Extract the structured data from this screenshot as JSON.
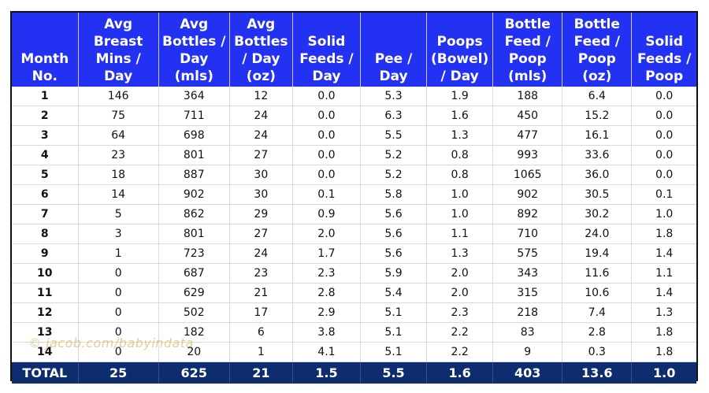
{
  "table": {
    "columns": [
      [
        "Month",
        "No."
      ],
      [
        "Avg",
        "Breast",
        "Mins /",
        "Day"
      ],
      [
        "Avg",
        "Bottles /",
        "Day (mls)"
      ],
      [
        "Avg",
        "Bottles",
        "/ Day",
        "(oz)"
      ],
      [
        "Solid",
        "Feeds /",
        "Day"
      ],
      [
        "Pee /",
        "Day"
      ],
      [
        "Poops",
        "(Bowel)",
        "/ Day"
      ],
      [
        "Bottle",
        "Feed /",
        "Poop",
        "(mls)"
      ],
      [
        "Bottle",
        "Feed /",
        "Poop",
        "(oz)"
      ],
      [
        "Solid",
        "Feeds /",
        "Poop"
      ]
    ],
    "rows": [
      [
        "1",
        "146",
        "364",
        "12",
        "0.0",
        "5.3",
        "1.9",
        "188",
        "6.4",
        "0.0"
      ],
      [
        "2",
        "75",
        "711",
        "24",
        "0.0",
        "6.3",
        "1.6",
        "450",
        "15.2",
        "0.0"
      ],
      [
        "3",
        "64",
        "698",
        "24",
        "0.0",
        "5.5",
        "1.3",
        "477",
        "16.1",
        "0.0"
      ],
      [
        "4",
        "23",
        "801",
        "27",
        "0.0",
        "5.2",
        "0.8",
        "993",
        "33.6",
        "0.0"
      ],
      [
        "5",
        "18",
        "887",
        "30",
        "0.0",
        "5.2",
        "0.8",
        "1065",
        "36.0",
        "0.0"
      ],
      [
        "6",
        "14",
        "902",
        "30",
        "0.1",
        "5.8",
        "1.0",
        "902",
        "30.5",
        "0.1"
      ],
      [
        "7",
        "5",
        "862",
        "29",
        "0.9",
        "5.6",
        "1.0",
        "892",
        "30.2",
        "1.0"
      ],
      [
        "8",
        "3",
        "801",
        "27",
        "2.0",
        "5.6",
        "1.1",
        "710",
        "24.0",
        "1.8"
      ],
      [
        "9",
        "1",
        "723",
        "24",
        "1.7",
        "5.6",
        "1.3",
        "575",
        "19.4",
        "1.4"
      ],
      [
        "10",
        "0",
        "687",
        "23",
        "2.3",
        "5.9",
        "2.0",
        "343",
        "11.6",
        "1.1"
      ],
      [
        "11",
        "0",
        "629",
        "21",
        "2.8",
        "5.4",
        "2.0",
        "315",
        "10.6",
        "1.4"
      ],
      [
        "12",
        "0",
        "502",
        "17",
        "2.9",
        "5.1",
        "2.3",
        "218",
        "7.4",
        "1.3"
      ],
      [
        "13",
        "0",
        "182",
        "6",
        "3.8",
        "5.1",
        "2.2",
        "83",
        "2.8",
        "1.8"
      ],
      [
        "14",
        "0",
        "20",
        "1",
        "4.1",
        "5.1",
        "2.2",
        "9",
        "0.3",
        "1.8"
      ]
    ],
    "total": [
      "TOTAL",
      "25",
      "625",
      "21",
      "1.5",
      "5.5",
      "1.6",
      "403",
      "13.6",
      "1.0"
    ]
  },
  "watermark": "© jacob.com/babyindata",
  "colors": {
    "header_bg": "#2332f2",
    "total_bg": "#0e2d6e",
    "header_text": "#ffffff"
  }
}
